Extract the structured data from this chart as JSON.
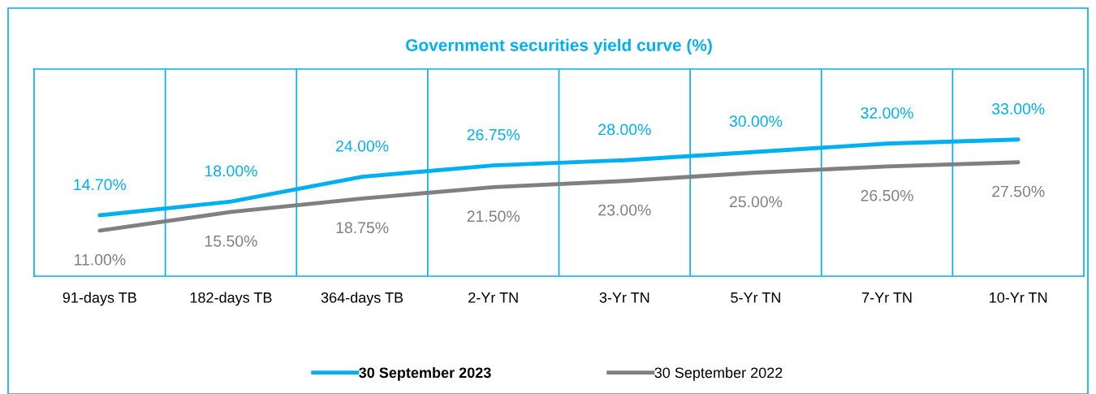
{
  "chart_data": {
    "type": "line",
    "title": "Government securities yield curve (%)",
    "categories": [
      "91-days TB",
      "182-days TB",
      "364-days TB",
      "2-Yr TN",
      "3-Yr TN",
      "5-Yr TN",
      "7-Yr TN",
      "10-Yr TN"
    ],
    "series": [
      {
        "name": "30 September 2023",
        "color": "#00b0f0",
        "values": [
          14.7,
          18.0,
          24.0,
          26.75,
          28.0,
          30.0,
          32.0,
          33.0
        ],
        "value_labels": [
          "14.70%",
          "18.00%",
          "24.00%",
          "26.75%",
          "28.00%",
          "30.00%",
          "32.00%",
          "33.00%"
        ]
      },
      {
        "name": "30 September 2022",
        "color": "#808080",
        "values": [
          11.0,
          15.5,
          18.75,
          21.5,
          23.0,
          25.0,
          26.5,
          27.5
        ],
        "value_labels": [
          "11.00%",
          "15.50%",
          "18.75%",
          "21.50%",
          "23.00%",
          "25.00%",
          "26.50%",
          "27.50%"
        ]
      }
    ],
    "ylim": [
      0,
      50
    ],
    "tick_labels": "x",
    "grid": "x",
    "legend": "bottom",
    "marker": "none",
    "line_style": "solid"
  }
}
